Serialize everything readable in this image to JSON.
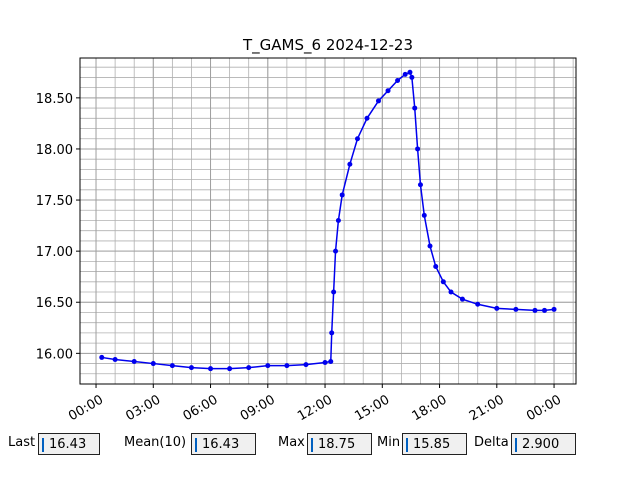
{
  "chart_data": {
    "type": "line",
    "title": "T_GAMS_6 2024-12-23",
    "x": [
      0.3,
      1,
      2,
      3,
      4,
      5,
      6,
      7,
      8,
      9,
      10,
      11,
      12,
      12.3,
      12.35,
      12.45,
      12.55,
      12.7,
      12.9,
      13.3,
      13.7,
      14.2,
      14.8,
      15.3,
      15.8,
      16.2,
      16.45,
      16.55,
      16.7,
      16.85,
      17.0,
      17.2,
      17.5,
      17.8,
      18.2,
      18.6,
      19.2,
      20,
      21,
      22,
      23,
      23.5,
      24
    ],
    "series": [
      {
        "name": "T_GAMS_6",
        "color": "#0000ee",
        "values": [
          15.96,
          15.94,
          15.92,
          15.9,
          15.88,
          15.86,
          15.85,
          15.85,
          15.86,
          15.88,
          15.88,
          15.89,
          15.91,
          15.92,
          16.2,
          16.6,
          17.0,
          17.3,
          17.55,
          17.85,
          18.1,
          18.3,
          18.47,
          18.57,
          18.67,
          18.73,
          18.75,
          18.7,
          18.4,
          18.0,
          17.65,
          17.35,
          17.05,
          16.85,
          16.7,
          16.6,
          16.53,
          16.48,
          16.44,
          16.43,
          16.42,
          16.42,
          16.43
        ]
      }
    ],
    "xlim": [
      -0.84,
      25.15
    ],
    "ylim": [
      15.7,
      18.89
    ],
    "xticks": [
      {
        "value": 0,
        "label": "00:00"
      },
      {
        "value": 3,
        "label": "03:00"
      },
      {
        "value": 6,
        "label": "06:00"
      },
      {
        "value": 9,
        "label": "09:00"
      },
      {
        "value": 12,
        "label": "12:00"
      },
      {
        "value": 15,
        "label": "15:00"
      },
      {
        "value": 18,
        "label": "18:00"
      },
      {
        "value": 21,
        "label": "21:00"
      },
      {
        "value": 24,
        "label": "00:00"
      }
    ],
    "yticks": [
      {
        "value": 16,
        "label": "16.00"
      },
      {
        "value": 16.5,
        "label": "16.50"
      },
      {
        "value": 17,
        "label": "17.00"
      },
      {
        "value": 17.5,
        "label": "17.50"
      },
      {
        "value": 18,
        "label": "18.00"
      },
      {
        "value": 18.5,
        "label": "18.50"
      }
    ],
    "grid": true,
    "minor_grid": true
  },
  "fields": [
    {
      "label": "Last",
      "value": "16.43"
    },
    {
      "label": "Mean(10)",
      "value": "16.43"
    },
    {
      "label": "Max",
      "value": "18.75"
    },
    {
      "label": "Min",
      "value": "15.85"
    },
    {
      "label": "Delta",
      "value": "2.900"
    }
  ]
}
